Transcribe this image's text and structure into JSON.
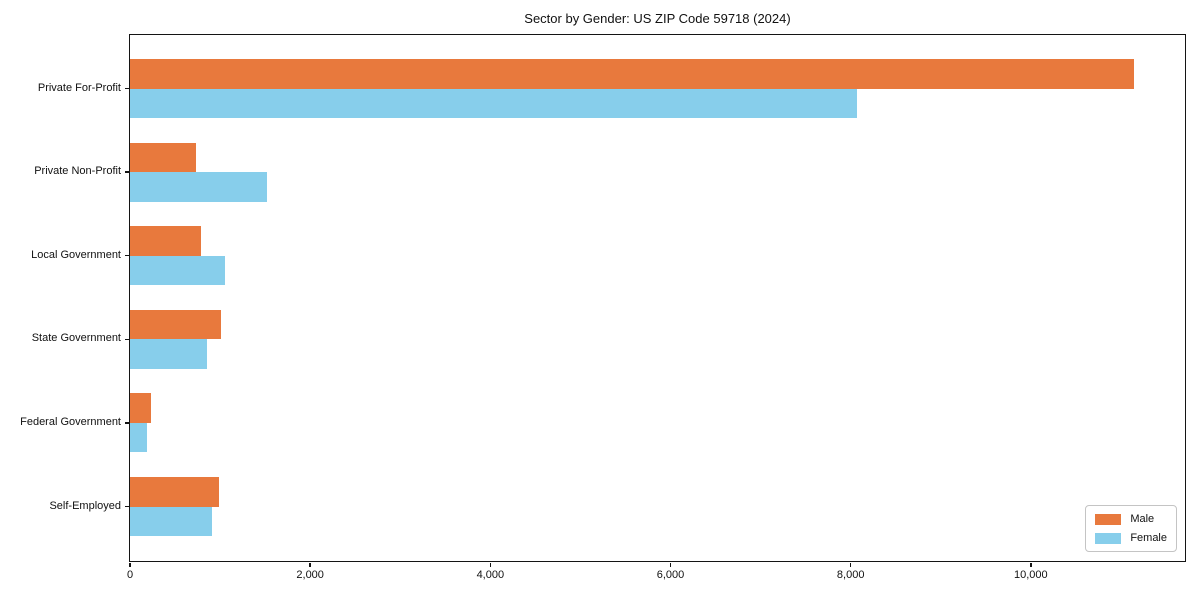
{
  "chart_data": {
    "type": "bar",
    "orientation": "horizontal",
    "title": "Sector by Gender: US ZIP Code 59718 (2024)",
    "categories": [
      "Private For-Profit",
      "Private Non-Profit",
      "Local Government",
      "State Government",
      "Federal Government",
      "Self-Employed"
    ],
    "series": [
      {
        "name": "Male",
        "color": "#E8793D",
        "values": [
          11150,
          730,
          790,
          1005,
          230,
          990
        ]
      },
      {
        "name": "Female",
        "color": "#87CEEB",
        "values": [
          8070,
          1525,
          1055,
          860,
          185,
          905
        ]
      }
    ],
    "xlim": [
      0,
      11700
    ],
    "xticks": [
      0,
      2000,
      4000,
      6000,
      8000,
      10000
    ],
    "xtick_labels": [
      "0",
      "2,000",
      "4,000",
      "6,000",
      "8,000",
      "10,000"
    ],
    "xlabel": "",
    "ylabel": "",
    "grid": false,
    "legend_position": "lower right",
    "background_color": "#ffffff",
    "spine_color": "#141414"
  }
}
